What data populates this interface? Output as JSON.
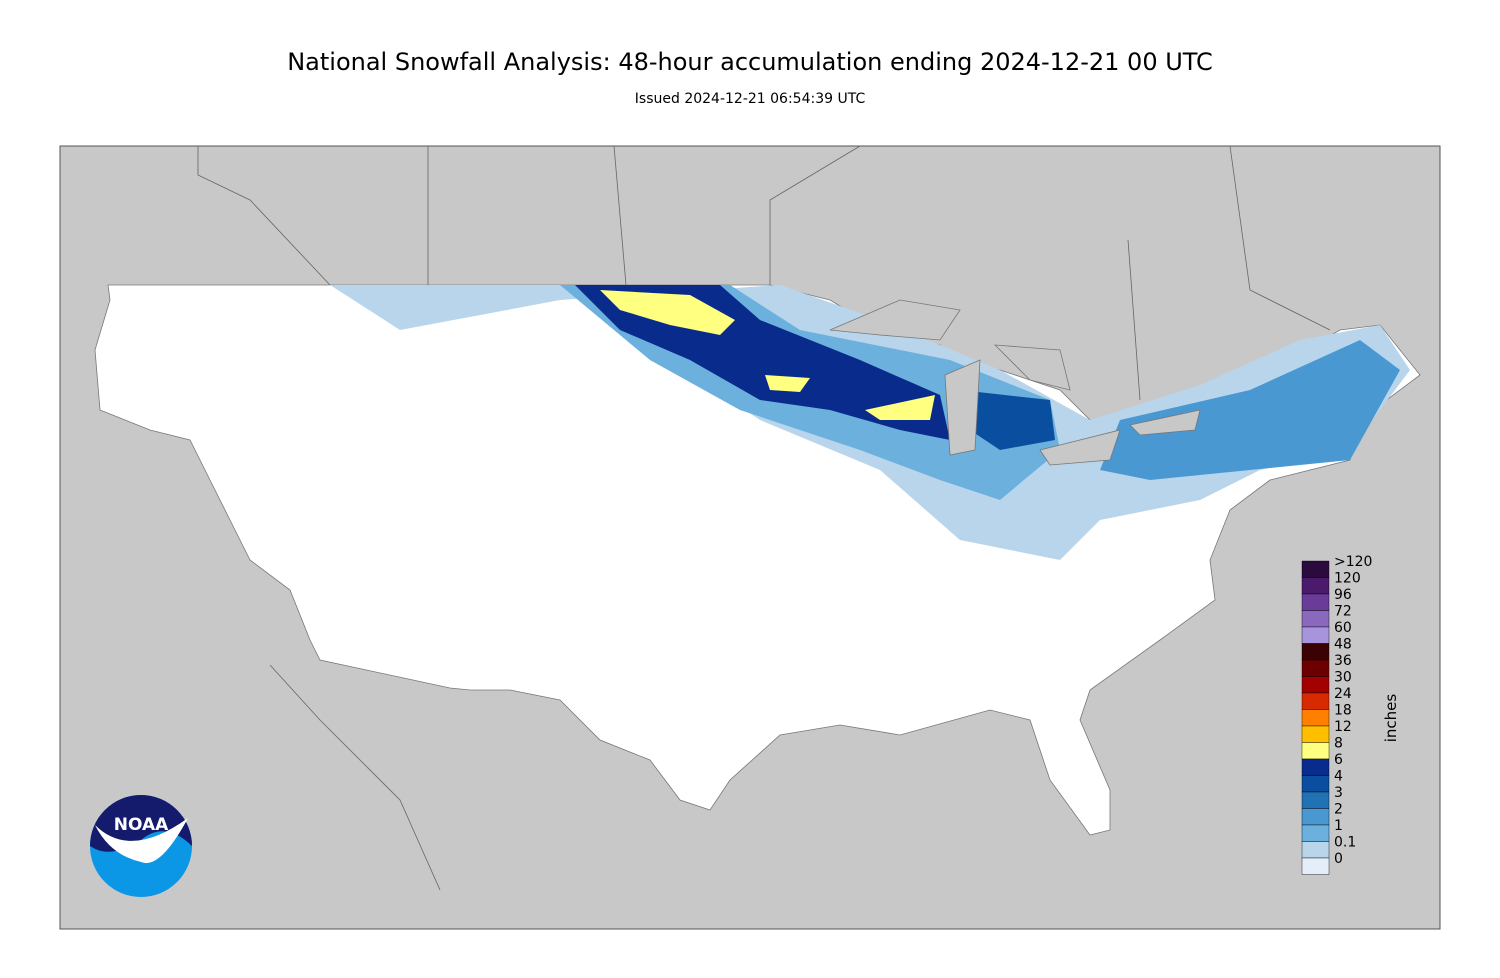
{
  "header": {
    "title": "National Snowfall Analysis: 48-hour accumulation ending 2024-12-21 00 UTC",
    "subtitle": "Issued 2024-12-21 06:54:39 UTC"
  },
  "logo": {
    "text": "NOAA"
  },
  "legend": {
    "unit": "inches",
    "items": [
      {
        "label": ">120",
        "color": "#2b0b3d"
      },
      {
        "label": "120",
        "color": "#4b1a6c"
      },
      {
        "label": "96",
        "color": "#6a3b98"
      },
      {
        "label": "72",
        "color": "#8a68bd"
      },
      {
        "label": "60",
        "color": "#a894dc"
      },
      {
        "label": "48",
        "color": "#3a0202"
      },
      {
        "label": "36",
        "color": "#6c0000"
      },
      {
        "label": "30",
        "color": "#a30000"
      },
      {
        "label": "24",
        "color": "#d82a00"
      },
      {
        "label": "18",
        "color": "#ff8000"
      },
      {
        "label": "12",
        "color": "#ffbf00"
      },
      {
        "label": "8",
        "color": "#ffff80"
      },
      {
        "label": "6",
        "color": "#082b8c"
      },
      {
        "label": "4",
        "color": "#0a4ea0"
      },
      {
        "label": "3",
        "color": "#2171b5"
      },
      {
        "label": "2",
        "color": "#4a98d2"
      },
      {
        "label": "1",
        "color": "#6cb0de"
      },
      {
        "label": "0.1",
        "color": "#b8d5ec"
      },
      {
        "label": "0",
        "color": "#e3eef8"
      }
    ]
  }
}
